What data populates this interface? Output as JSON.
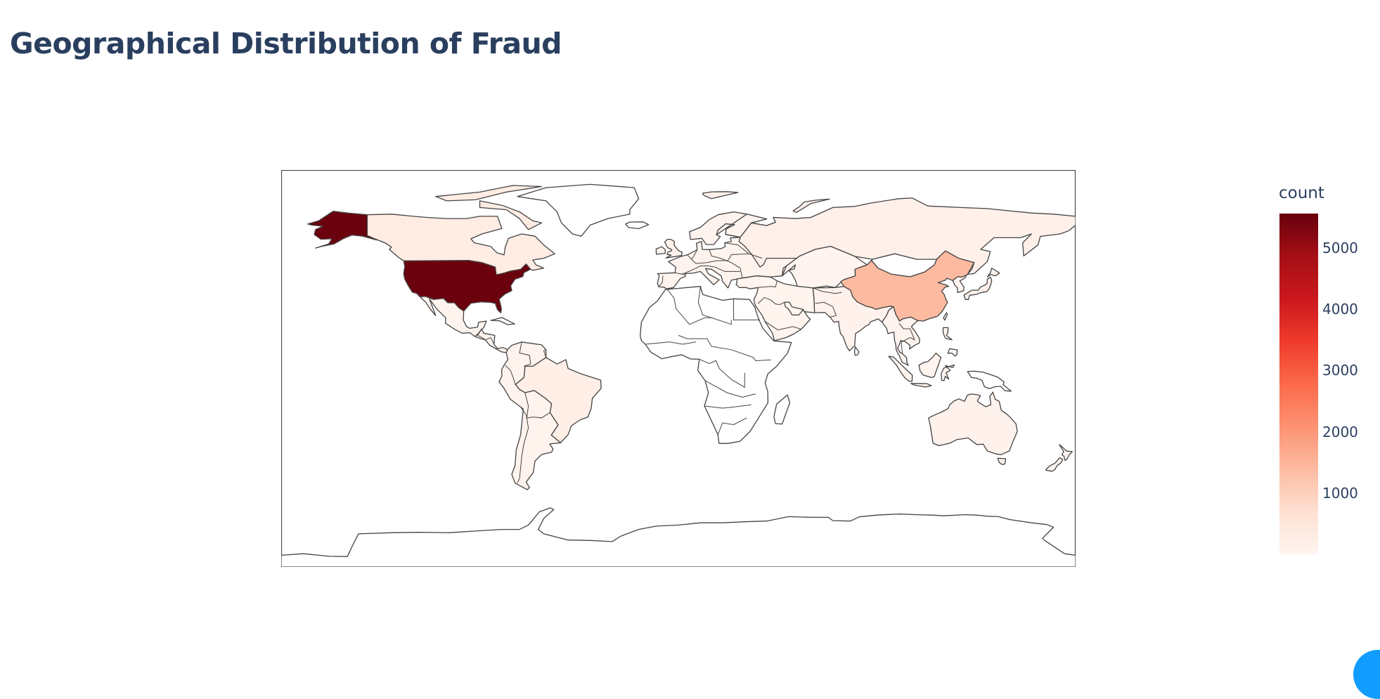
{
  "page": {
    "title": "Geographical Distribution of Fraud"
  },
  "colorbar": {
    "title": "count",
    "ticks": [
      5000,
      4000,
      3000,
      2000,
      1000
    ],
    "min": 0,
    "max": 5560,
    "colorscale": [
      "#fff5f0",
      "#fee0d2",
      "#fcbba1",
      "#fc9272",
      "#fb6a4a",
      "#ef3b2c",
      "#cb181d",
      "#a50f15",
      "#67000d"
    ]
  },
  "colors": {
    "border": "#444444",
    "frame": "#444444",
    "unshaded_land": "#ffffff",
    "ocean": "#ffffff",
    "corner_accent": "#119dff"
  },
  "chart_data": {
    "type": "choropleth",
    "value_label": "count",
    "projection": "equirectangular",
    "notes_visible": "United States darkest (highest count), China medium, Canada/Russia/Brazil/Australia and most other countries very light; many African countries unshaded",
    "regions": [
      {
        "name": "United States",
        "value": 5500
      },
      {
        "name": "China",
        "value": 1400
      },
      {
        "name": "Canada",
        "value": 300
      },
      {
        "name": "Russia",
        "value": 150
      },
      {
        "name": "Brazil",
        "value": 200
      },
      {
        "name": "Australia",
        "value": 120
      },
      {
        "name": "India",
        "value": 100
      },
      {
        "name": "Mexico",
        "value": 80
      },
      {
        "name": "Japan",
        "value": 150
      }
    ]
  }
}
